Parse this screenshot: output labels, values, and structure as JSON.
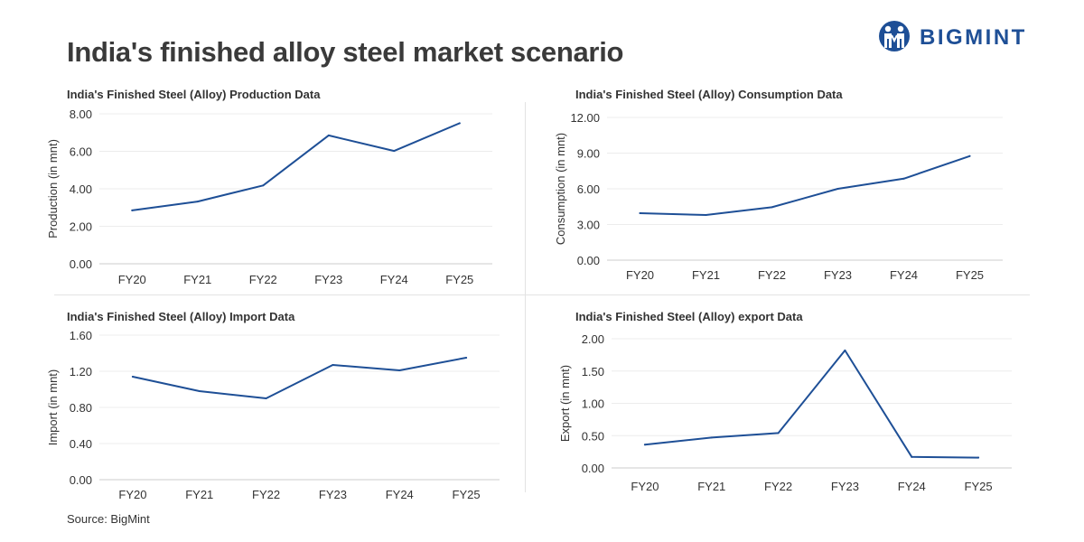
{
  "header": {
    "title": "India's finished alloy steel market scenario",
    "brand": "BIGMINT",
    "brand_color": "#1e4f96"
  },
  "source": "Source: BigMint",
  "series_color": "#1e4f96",
  "chart_data": [
    {
      "type": "line",
      "title": "India's Finished Steel (Alloy) Production Data",
      "ylabel": "Production (in mnt)",
      "categories": [
        "FY20",
        "FY21",
        "FY22",
        "FY23",
        "FY24",
        "FY25"
      ],
      "values": [
        2.85,
        3.32,
        4.18,
        6.85,
        6.02,
        7.5
      ],
      "yticks": [
        "0.00",
        "2.00",
        "4.00",
        "6.00",
        "8.00"
      ],
      "ylim": [
        0,
        8
      ],
      "grid": true
    },
    {
      "type": "line",
      "title": "India's Finished Steel (Alloy) Consumption Data",
      "ylabel": "Consumption (in mnt)",
      "categories": [
        "FY20",
        "FY21",
        "FY22",
        "FY23",
        "FY24",
        "FY25"
      ],
      "values": [
        3.95,
        3.8,
        4.45,
        6.0,
        6.85,
        8.75
      ],
      "yticks": [
        "0.00",
        "3.00",
        "6.00",
        "9.00",
        "12.00"
      ],
      "ylim": [
        0,
        12
      ],
      "grid": true
    },
    {
      "type": "line",
      "title": "India's Finished Steel (Alloy) Import Data",
      "ylabel": "Import (in mnt)",
      "categories": [
        "FY20",
        "FY21",
        "FY22",
        "FY23",
        "FY24",
        "FY25"
      ],
      "values": [
        1.14,
        0.98,
        0.9,
        1.27,
        1.21,
        1.35
      ],
      "yticks": [
        "0.00",
        "0.40",
        "0.80",
        "1.20",
        "1.60"
      ],
      "ylim": [
        0,
        1.6
      ],
      "grid": true
    },
    {
      "type": "line",
      "title": "India's Finished Steel (Alloy) export Data",
      "ylabel": "Export  (in mnt)",
      "categories": [
        "FY20",
        "FY21",
        "FY22",
        "FY23",
        "FY24",
        "FY25"
      ],
      "values": [
        0.36,
        0.47,
        0.54,
        1.82,
        0.17,
        0.16
      ],
      "yticks": [
        "0.00",
        "0.50",
        "1.00",
        "1.50",
        "2.00"
      ],
      "ylim": [
        0,
        2
      ],
      "grid": true
    }
  ]
}
